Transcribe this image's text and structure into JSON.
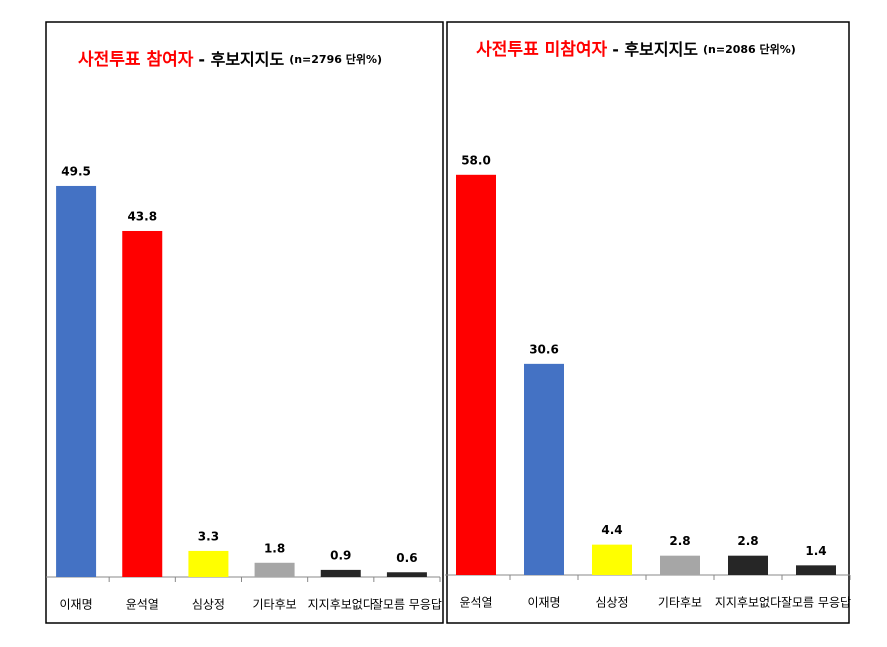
{
  "chart_data": [
    {
      "type": "bar",
      "title": "사전투표 참여자",
      "subtitle": "- 후보지지도",
      "note": "(n=2796 단위%)",
      "categories": [
        "이재명",
        "윤석열",
        "심상정",
        "기타후보",
        "지지후보없다",
        "잘모름 무응답"
      ],
      "values": [
        49.5,
        43.8,
        3.3,
        1.8,
        0.9,
        0.6
      ],
      "colors": [
        "#4472c4",
        "#ff0000",
        "#ffff00",
        "#a6a6a6",
        "#262626",
        "#262626"
      ],
      "ylim": [
        0,
        60
      ]
    },
    {
      "type": "bar",
      "title": "사전투표 미참여자",
      "subtitle": "- 후보지지도",
      "note": "(n=2086 단위%)",
      "categories": [
        "윤석열",
        "이재명",
        "심상정",
        "기타후보",
        "지지후보없다",
        "잘모름 무응답"
      ],
      "values": [
        58.0,
        30.6,
        4.4,
        2.8,
        2.8,
        1.4
      ],
      "value_labels": [
        "58.0",
        "30.6",
        "4.4",
        "2.8",
        "2.8",
        "1.4"
      ],
      "colors": [
        "#ff0000",
        "#4472c4",
        "#ffff00",
        "#a6a6a6",
        "#262626",
        "#262626"
      ],
      "ylim": [
        0,
        60
      ]
    }
  ]
}
